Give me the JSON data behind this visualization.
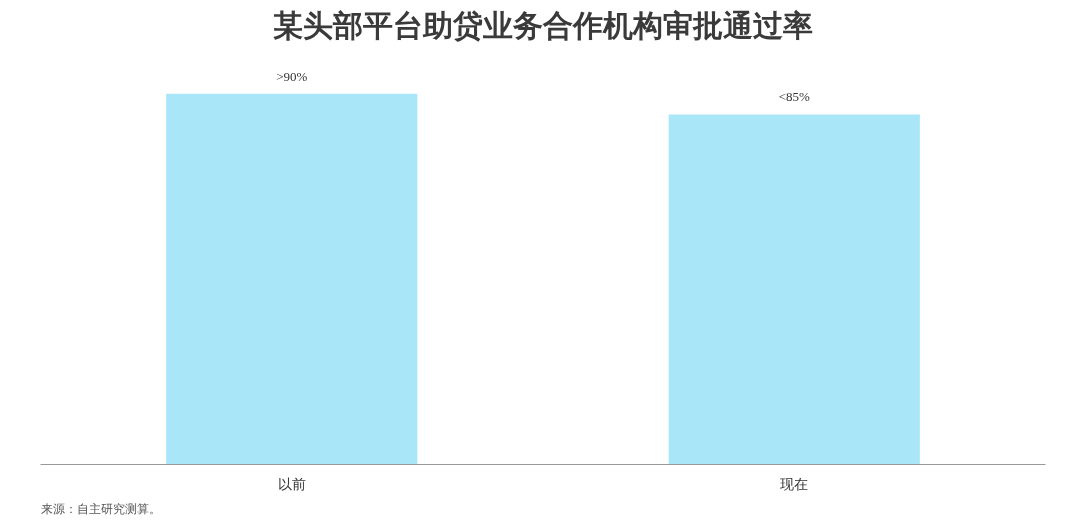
{
  "chart_data": {
    "type": "bar",
    "title": "某头部平台助贷业务合作机构审批通过率",
    "categories": [
      "以前",
      "现在"
    ],
    "values": [
      90,
      85
    ],
    "value_labels": [
      ">90%",
      "<85%"
    ],
    "tick_labels": "x",
    "color": "#a9e7f8",
    "grid": false,
    "annotations": [
      "来源：自主研究测算。"
    ]
  }
}
